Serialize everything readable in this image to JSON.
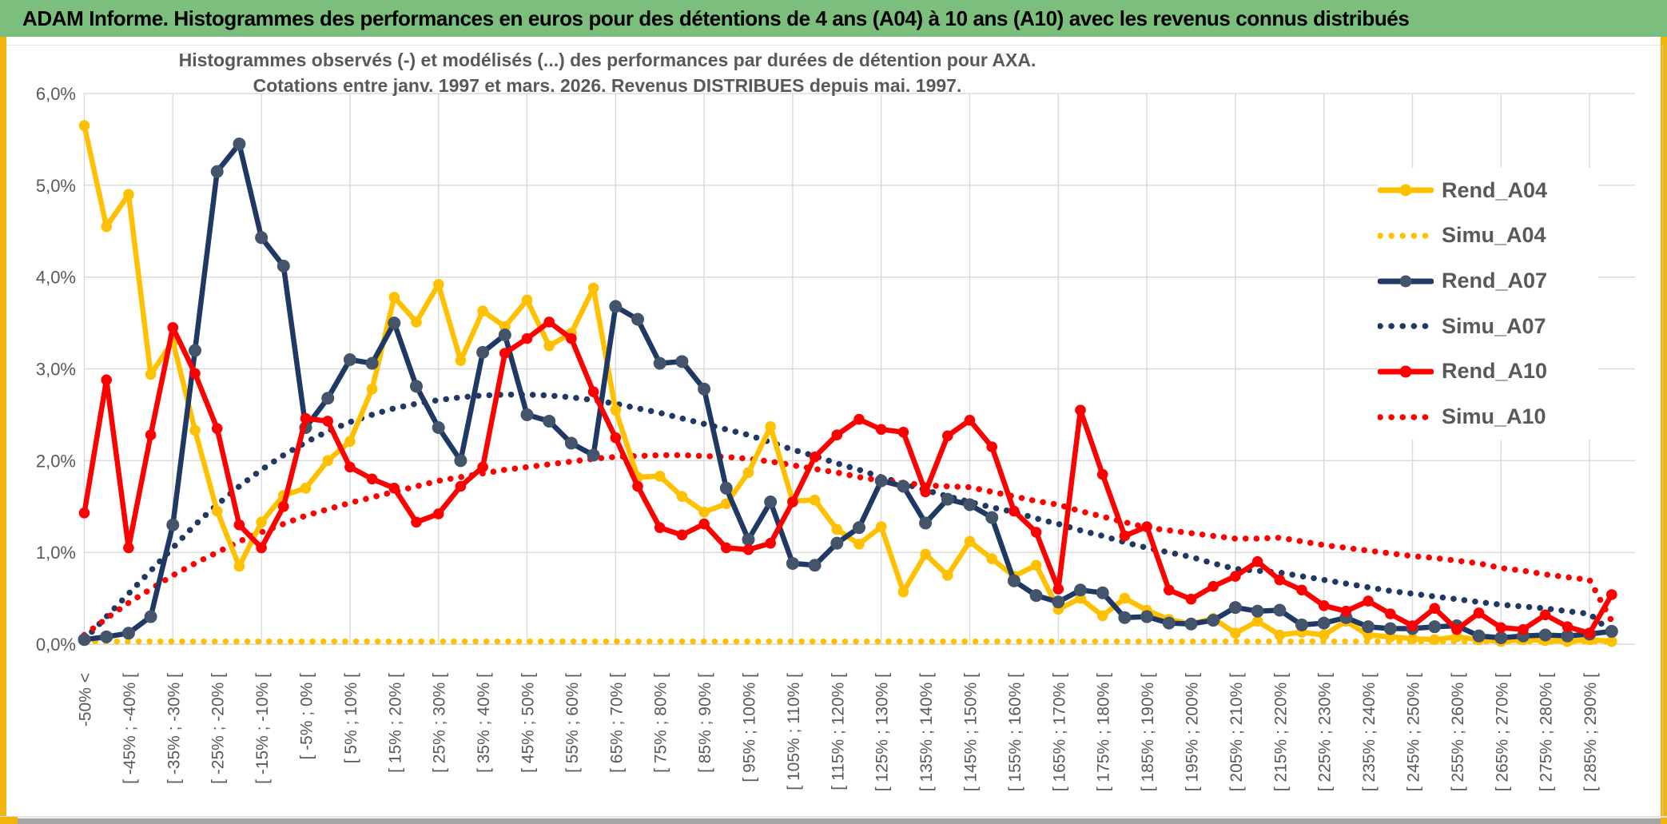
{
  "header": {
    "title": "ADAM Informe. Histogrammes des performances en euros pour des détentions de 4 ans (A04) à 10 ans (A10) avec les revenus connus distribués"
  },
  "chart": {
    "title_line1": "Histogrammes observés (-) et modélisés (...) des performances par durées de détention pour AXA.",
    "title_line2": "Cotations entre janv. 1997 et mars. 2026. Revenus DISTRIBUES depuis mai. 1997.",
    "y_tick_labels": [
      "0,0%",
      "1,0%",
      "2,0%",
      "3,0%",
      "4,0%",
      "5,0%",
      "6,0%"
    ],
    "legend": [
      {
        "label": "Rend_A04",
        "style": "solid",
        "color": "#FFC000",
        "marker": "#FFC000"
      },
      {
        "label": "Simu_A04",
        "style": "dotted",
        "color": "#FFC000"
      },
      {
        "label": "Rend_A07",
        "style": "solid",
        "color": "#1F3864",
        "marker": "#44546A"
      },
      {
        "label": "Simu_A07",
        "style": "dotted",
        "color": "#1F3864"
      },
      {
        "label": "Rend_A10",
        "style": "solid",
        "color": "#FF0000",
        "marker": "#FF0000"
      },
      {
        "label": "Simu_A10",
        "style": "dotted",
        "color": "#FF0000"
      }
    ],
    "colors": {
      "header_green": "#7CBE7C",
      "accent_yellow": "#F0B40A",
      "gold": "#FFC000",
      "navy": "#1F3864",
      "navy_marker": "#44546A",
      "red": "#FF0000",
      "text_gray": "#595959",
      "grid": "#D9D9D9",
      "bottom_bar": "#A6A6A6"
    }
  },
  "chart_data": {
    "type": "line",
    "title": "Histogrammes observés (-) et modélisés (...) des performances par durées de détention pour AXA.",
    "subtitle": "Cotations entre janv. 1997 et mars. 2026. Revenus DISTRIBUES depuis mai. 1997.",
    "xlabel": "",
    "ylabel": "",
    "ylim": [
      0,
      6
    ],
    "grid": true,
    "legend_position": "right",
    "categories": [
      "-50% <",
      "",
      "[ -45% ; -40% [",
      "",
      "[ -35% ; -30% [",
      "",
      "[ -25% ; -20% [",
      "",
      "[ -15% ; -10% [",
      "",
      "[ -5% ; 0% [",
      "",
      "[ 5% ; 10% [",
      "",
      "[ 15% ; 20% [",
      "",
      "[ 25% ; 30% [",
      "",
      "[ 35% ; 40% [",
      "",
      "[ 45% ; 50% [",
      "",
      "[ 55% ; 60% [",
      "",
      "[ 65% ; 70% [",
      "",
      "[ 75% ; 80% [",
      "",
      "[ 85% ; 90% [",
      "",
      "[ 95% ; 100% [",
      "",
      "[ 105% ; 110% [",
      "",
      "[ 115% ; 120% [",
      "",
      "[ 125% ; 130% [",
      "",
      "[ 135% ; 140% [",
      "",
      "[ 145% ; 150% [",
      "",
      "[ 155% ; 160% [",
      "",
      "[ 165% ; 170% [",
      "",
      "[ 175% ; 180% [",
      "",
      "[ 185% ; 190% [",
      "",
      "[ 195% ; 200% [",
      "",
      "[ 205% ; 210% [",
      "",
      "[ 215% ; 220% [",
      "",
      "[ 225% ; 230% [",
      "",
      "[ 235% ; 240% [",
      "",
      "[ 245% ; 250% [",
      "",
      "[ 255% ; 260% [",
      "",
      "[ 265% ; 270% [",
      "",
      "[ 275% ; 280% [",
      "",
      "[ 285% ; 290% [",
      ""
    ],
    "series": [
      {
        "name": "Rend_A04",
        "style": "solid",
        "color": "#FFC000",
        "marker_color": "#FFC000",
        "values": [
          5.65,
          4.55,
          4.9,
          2.94,
          3.3,
          2.33,
          1.45,
          0.85,
          1.33,
          1.62,
          1.7,
          2.0,
          2.21,
          2.78,
          3.78,
          3.51,
          3.92,
          3.09,
          3.63,
          3.46,
          3.75,
          3.25,
          3.39,
          3.88,
          2.55,
          1.82,
          1.83,
          1.61,
          1.44,
          1.53,
          1.87,
          2.37,
          1.56,
          1.57,
          1.25,
          1.09,
          1.28,
          0.57,
          0.98,
          0.75,
          1.12,
          0.93,
          0.74,
          0.86,
          0.38,
          0.5,
          0.31,
          0.5,
          0.37,
          0.27,
          0.22,
          0.28,
          0.12,
          0.25,
          0.1,
          0.13,
          0.1,
          0.25,
          0.1,
          0.08,
          0.06,
          0.05,
          0.08,
          0.05,
          0.03,
          0.05,
          0.04,
          0.03,
          0.05,
          0.03
        ]
      },
      {
        "name": "Simu_A04",
        "style": "dotted",
        "color": "#FFC000",
        "values": [
          0.03,
          0.03,
          0.03,
          0.03,
          0.03,
          0.03,
          0.03,
          0.03,
          0.03,
          0.03,
          0.03,
          0.03,
          0.03,
          0.03,
          0.03,
          0.03,
          0.03,
          0.03,
          0.03,
          0.03,
          0.03,
          0.03,
          0.03,
          0.03,
          0.03,
          0.03,
          0.03,
          0.03,
          0.03,
          0.03,
          0.03,
          0.03,
          0.03,
          0.03,
          0.03,
          0.03,
          0.03,
          0.03,
          0.03,
          0.03,
          0.03,
          0.03,
          0.03,
          0.03,
          0.03,
          0.03,
          0.03,
          0.03,
          0.03,
          0.03,
          0.03,
          0.03,
          0.03,
          0.03,
          0.03,
          0.03,
          0.03,
          0.03,
          0.03,
          0.03,
          0.03,
          0.03,
          0.03,
          0.03,
          0.03,
          0.03,
          0.03,
          0.03,
          0.03,
          0.03
        ]
      },
      {
        "name": "Rend_A07",
        "style": "solid",
        "color": "#1F3864",
        "marker_color": "#44546A",
        "values": [
          0.05,
          0.08,
          0.12,
          0.3,
          1.3,
          3.2,
          5.15,
          5.45,
          4.43,
          4.12,
          2.36,
          2.68,
          3.1,
          3.06,
          3.5,
          2.81,
          2.36,
          2.0,
          3.18,
          3.37,
          2.5,
          2.43,
          2.19,
          2.06,
          3.68,
          3.54,
          3.06,
          3.08,
          2.78,
          1.7,
          1.14,
          1.55,
          0.88,
          0.86,
          1.1,
          1.27,
          1.78,
          1.72,
          1.32,
          1.58,
          1.52,
          1.38,
          0.69,
          0.53,
          0.46,
          0.59,
          0.56,
          0.29,
          0.3,
          0.23,
          0.22,
          0.26,
          0.4,
          0.36,
          0.37,
          0.21,
          0.23,
          0.29,
          0.19,
          0.17,
          0.17,
          0.19,
          0.2,
          0.09,
          0.07,
          0.09,
          0.1,
          0.09,
          0.11,
          0.14
        ]
      },
      {
        "name": "Simu_A07",
        "style": "dotted",
        "color": "#1F3864",
        "values": [
          0.05,
          0.3,
          0.55,
          0.8,
          1.05,
          1.3,
          1.52,
          1.72,
          1.9,
          2.06,
          2.2,
          2.32,
          2.42,
          2.5,
          2.57,
          2.62,
          2.66,
          2.69,
          2.71,
          2.72,
          2.72,
          2.71,
          2.69,
          2.66,
          2.62,
          2.57,
          2.52,
          2.46,
          2.4,
          2.34,
          2.28,
          2.2,
          2.12,
          2.05,
          1.97,
          1.9,
          1.82,
          1.75,
          1.68,
          1.61,
          1.55,
          1.49,
          1.44,
          1.37,
          1.31,
          1.24,
          1.18,
          1.11,
          1.05,
          1.0,
          0.95,
          0.88,
          0.82,
          0.8,
          0.78,
          0.74,
          0.7,
          0.66,
          0.62,
          0.58,
          0.55,
          0.52,
          0.49,
          0.46,
          0.43,
          0.41,
          0.39,
          0.36,
          0.33,
          0.13
        ]
      },
      {
        "name": "Rend_A10",
        "style": "solid",
        "color": "#FF0000",
        "marker_color": "#FF0000",
        "values": [
          1.43,
          2.88,
          1.05,
          2.28,
          3.45,
          2.95,
          2.35,
          1.3,
          1.05,
          1.5,
          2.46,
          2.43,
          1.93,
          1.8,
          1.7,
          1.33,
          1.42,
          1.72,
          1.93,
          3.17,
          3.33,
          3.51,
          3.33,
          2.75,
          2.25,
          1.72,
          1.27,
          1.19,
          1.31,
          1.05,
          1.03,
          1.1,
          1.55,
          2.04,
          2.28,
          2.45,
          2.34,
          2.31,
          1.66,
          2.27,
          2.44,
          2.15,
          1.45,
          1.22,
          0.6,
          2.55,
          1.85,
          1.18,
          1.28,
          0.59,
          0.49,
          0.63,
          0.74,
          0.9,
          0.7,
          0.59,
          0.42,
          0.36,
          0.47,
          0.33,
          0.2,
          0.39,
          0.16,
          0.34,
          0.18,
          0.16,
          0.32,
          0.19,
          0.12,
          0.54
        ]
      },
      {
        "name": "Simu_A10",
        "style": "dotted",
        "color": "#FF0000",
        "values": [
          0.1,
          0.28,
          0.45,
          0.6,
          0.75,
          0.88,
          1.0,
          1.12,
          1.22,
          1.31,
          1.4,
          1.47,
          1.54,
          1.6,
          1.66,
          1.72,
          1.78,
          1.82,
          1.86,
          1.9,
          1.93,
          1.96,
          1.99,
          2.02,
          2.04,
          2.05,
          2.06,
          2.06,
          2.05,
          2.04,
          2.02,
          1.99,
          1.95,
          1.91,
          1.87,
          1.82,
          1.78,
          1.76,
          1.73,
          1.72,
          1.71,
          1.66,
          1.61,
          1.56,
          1.52,
          1.45,
          1.39,
          1.33,
          1.27,
          1.24,
          1.21,
          1.18,
          1.15,
          1.15,
          1.16,
          1.12,
          1.08,
          1.05,
          1.02,
          0.99,
          0.96,
          0.94,
          0.91,
          0.88,
          0.83,
          0.8,
          0.76,
          0.73,
          0.7,
          0.25
        ]
      }
    ]
  }
}
